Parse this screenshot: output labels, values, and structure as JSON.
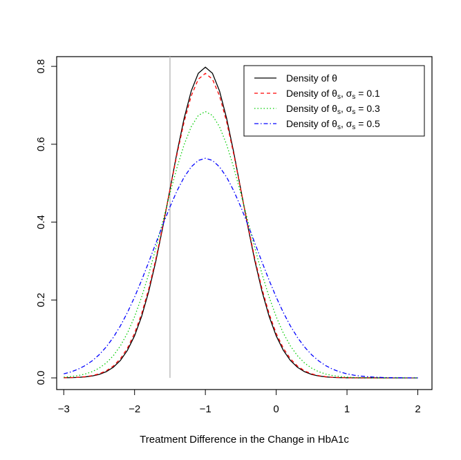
{
  "chart_data": {
    "type": "line",
    "title": "",
    "xlabel": "Treatment Difference in the Change in HbA1c",
    "ylabel": "",
    "xlim": [
      -3.1,
      2.2
    ],
    "ylim": [
      -0.03,
      0.825
    ],
    "xticks": [
      -3,
      -2,
      -1,
      0,
      1,
      2
    ],
    "xtick_labels": [
      "−3",
      "−2",
      "−1",
      "0",
      "1",
      "2"
    ],
    "yticks": [
      0.0,
      0.2,
      0.4,
      0.6,
      0.8
    ],
    "ytick_labels": [
      "0.0",
      "0.2",
      "0.4",
      "0.6",
      "0.8"
    ],
    "grid": false,
    "legend_position": "top-right",
    "reference_line": {
      "x": -1.5,
      "color": "#bebebe"
    },
    "x_range": [
      -3,
      2
    ],
    "x_step": 0.1,
    "series": [
      {
        "name": "θ",
        "legend_parts": [
          [
            "Density of θ",
            ""
          ]
        ],
        "color": "#000000",
        "dash": "",
        "mean": -1,
        "sd": 0.5,
        "peak": 0.798
      },
      {
        "name": "θs, σs = 0.1",
        "legend_parts": [
          [
            "Density of θ",
            ""
          ],
          [
            "s",
            "sub"
          ],
          [
            ", σ",
            ""
          ],
          [
            "s",
            "sub"
          ],
          [
            " = 0.1",
            ""
          ]
        ],
        "color": "#ff0000",
        "dash": "5,4",
        "mean": -1,
        "sd": 0.51,
        "peak": 0.782
      },
      {
        "name": "θs, σs = 0.3",
        "legend_parts": [
          [
            "Density of θ",
            ""
          ],
          [
            "s",
            "sub"
          ],
          [
            ", σ",
            ""
          ],
          [
            "s",
            "sub"
          ],
          [
            " = 0.3",
            ""
          ]
        ],
        "color": "#00cd00",
        "dash": "1.5,3",
        "mean": -1,
        "sd": 0.583,
        "peak": 0.684
      },
      {
        "name": "θs, σs = 0.5",
        "legend_parts": [
          [
            "Density of θ",
            ""
          ],
          [
            "s",
            "sub"
          ],
          [
            ", σ",
            ""
          ],
          [
            "s",
            "sub"
          ],
          [
            " = 0.5",
            ""
          ]
        ],
        "color": "#0000ff",
        "dash": "6,3,1.5,3",
        "mean": -1,
        "sd": 0.707,
        "peak": 0.564
      }
    ]
  }
}
